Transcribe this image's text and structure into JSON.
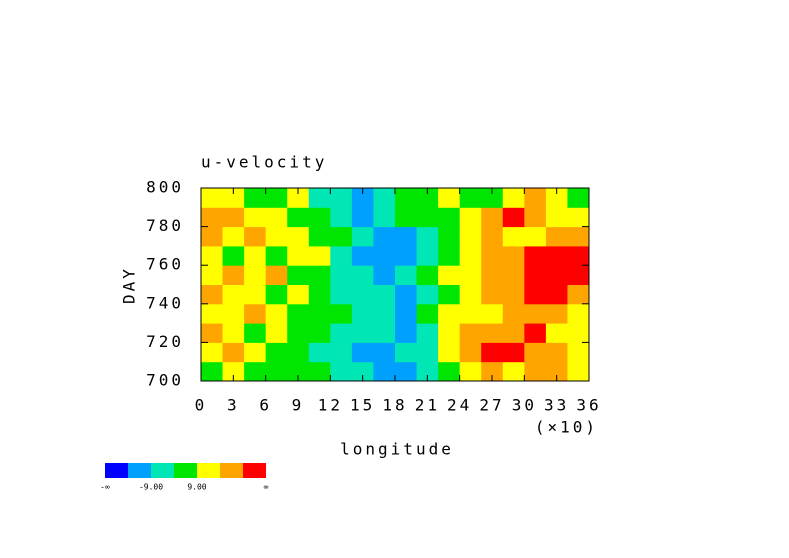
{
  "chart_data": {
    "type": "contour",
    "title": "u-velocity",
    "xlabel": "longitude",
    "x_multiplier": "(×10)",
    "ylabel": "DAY",
    "xlim": [
      0,
      36
    ],
    "xticks": [
      0,
      3,
      6,
      9,
      12,
      15,
      18,
      21,
      24,
      27,
      30,
      33,
      36
    ],
    "ylim": [
      700,
      800
    ],
    "yticks": [
      700,
      720,
      740,
      760,
      780,
      800
    ],
    "x": [
      1,
      3,
      5,
      7,
      9,
      11,
      13,
      15,
      17,
      19,
      21,
      23,
      25,
      27,
      29,
      31,
      33,
      35
    ],
    "y": [
      705,
      715,
      725,
      735,
      745,
      755,
      765,
      775,
      785,
      795
    ],
    "z": [
      [
        5,
        10,
        3,
        6,
        8,
        2,
        -1,
        -5,
        -10,
        -12,
        -8,
        6,
        12,
        20,
        15,
        20,
        22,
        14
      ],
      [
        12,
        20,
        10,
        4,
        2,
        -2,
        -6,
        -10,
        -12,
        -9,
        -4,
        10,
        22,
        28,
        30,
        24,
        18,
        12
      ],
      [
        20,
        14,
        6,
        12,
        8,
        3,
        -3,
        -8,
        -6,
        -12,
        -2,
        14,
        18,
        24,
        20,
        30,
        16,
        10
      ],
      [
        14,
        10,
        20,
        12,
        5,
        7,
        3,
        -4,
        -3,
        -10,
        0,
        12,
        10,
        16,
        22,
        20,
        25,
        14
      ],
      [
        22,
        16,
        10,
        6,
        12,
        4,
        -2,
        -6,
        -8,
        -11,
        -3,
        8,
        14,
        20,
        24,
        28,
        30,
        24
      ],
      [
        10,
        18,
        12,
        20,
        8,
        3,
        -5,
        -8,
        -14,
        -6,
        2,
        10,
        16,
        20,
        24,
        28,
        32,
        30
      ],
      [
        16,
        8,
        12,
        6,
        14,
        10,
        -2,
        -12,
        -16,
        -10,
        -4,
        6,
        12,
        20,
        22,
        30,
        30,
        28
      ],
      [
        18,
        12,
        22,
        14,
        10,
        6,
        1,
        -6,
        -10,
        -14,
        -8,
        2,
        14,
        18,
        12,
        16,
        20,
        26
      ],
      [
        26,
        20,
        14,
        10,
        8,
        2,
        -4,
        -10,
        -3,
        0,
        3,
        8,
        12,
        22,
        28,
        20,
        16,
        12
      ],
      [
        12,
        16,
        8,
        4,
        10,
        -2,
        -8,
        -14,
        -6,
        2,
        6,
        10,
        8,
        4,
        12,
        18,
        10,
        6
      ]
    ],
    "levels": [
      -18,
      -9,
      0,
      9,
      18,
      27
    ],
    "colors": [
      "#0000ff",
      "#00a0ff",
      "#00e6b4",
      "#00e600",
      "#ffff00",
      "#ffa500",
      "#ff0000"
    ],
    "colorbar_ticks": [
      {
        "label": "-∞"
      },
      {
        "value": -9,
        "label": "-9.00"
      },
      {
        "value": 9,
        "label": "9.00"
      },
      {
        "label": "∞"
      }
    ]
  }
}
